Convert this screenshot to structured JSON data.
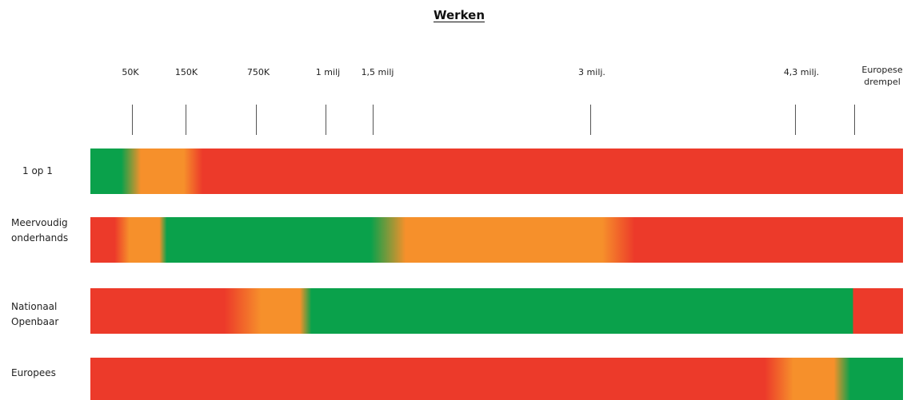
{
  "title": "Werken",
  "thresholds": [
    {
      "label": "50K",
      "line": "1 line"
    },
    {
      "label": "150K"
    },
    {
      "label": "750K"
    },
    {
      "label": "1 milj"
    },
    {
      "label": "1,5 milj"
    },
    {
      "label": "3 milj."
    },
    {
      "label": "4,3 milj."
    },
    {
      "label": "Europese drempel",
      "lines": [
        "Europese",
        "drempel"
      ]
    }
  ],
  "rows": [
    {
      "label": "1 op 1"
    },
    {
      "label_lines": [
        "Meervoudig",
        "onderhands"
      ]
    },
    {
      "label_lines": [
        "Nationaal",
        "Openbaar"
      ]
    },
    {
      "label": "Europees"
    }
  ],
  "colors": {
    "green": "#0aa14b",
    "orange": "#f6902b",
    "red": "#ec3a2a"
  }
}
